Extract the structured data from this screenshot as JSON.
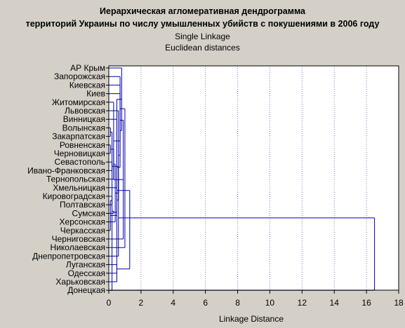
{
  "chart_data": {
    "type": "dendrogram",
    "title": "Иерархическая агломеративная дендрограмма",
    "title_line2": "территорий Украины по числу умышленных убийств с покушениями в 2006 году",
    "subtitle1": "Single Linkage",
    "subtitle2": "Euclidean distances",
    "xlabel": "Linkage Distance",
    "xlim": [
      0,
      18
    ],
    "xticks": [
      0,
      2,
      4,
      6,
      8,
      10,
      12,
      14,
      16,
      18
    ],
    "grid": true,
    "leaves": [
      "АР Крым",
      "Запорожская",
      "Киевская",
      "Киев",
      "Житомирская",
      "Львовская",
      "Винницкая",
      "Волынская",
      "Закарпатская",
      "Ровненская",
      "Черновицкая",
      "Севастополь",
      "Ивано-Франковская",
      "Тернопольская",
      "Хмельницкая",
      "Кировоградская",
      "Полтавская",
      "Сумская",
      "Херсонская",
      "Черкасская",
      "Черниговская",
      "Николаевская",
      "Днепропетровская",
      "Луганская",
      "Одесская",
      "Харьковская",
      "Донецкая"
    ],
    "merges": [
      {
        "a": 8,
        "b": 9,
        "height": 0.1
      },
      {
        "a": 10,
        "b": 11,
        "height": 0.1
      },
      {
        "a": 12,
        "b": 13,
        "height": 0.2
      },
      {
        "a": 27,
        "b": 28,
        "height": 0.2
      },
      {
        "a": 29,
        "b": 14,
        "height": 0.3
      },
      {
        "a": 16,
        "b": 17,
        "height": 0.2
      },
      {
        "a": 31,
        "b": 18,
        "height": 0.3
      },
      {
        "a": 32,
        "b": 19,
        "height": 0.4
      },
      {
        "a": 33,
        "b": 20,
        "height": 0.1
      },
      {
        "a": 34,
        "b": 15,
        "height": 0.5
      },
      {
        "a": 30,
        "b": 35,
        "height": 0.6
      },
      {
        "a": 36,
        "b": 7,
        "height": 0.5
      },
      {
        "a": 37,
        "b": 6,
        "height": 0.6
      },
      {
        "a": 5,
        "b": 38,
        "height": 0.3
      },
      {
        "a": 4,
        "b": 39,
        "height": 0.7
      },
      {
        "a": 3,
        "b": 40,
        "height": 0.7
      },
      {
        "a": 2,
        "b": 41,
        "height": 0.7
      },
      {
        "a": 1,
        "b": 42,
        "height": 0.8
      },
      {
        "a": 43,
        "b": 21,
        "height": 0.9
      },
      {
        "a": 24,
        "b": 25,
        "height": 0.5
      },
      {
        "a": 45,
        "b": 26,
        "height": 0.5
      },
      {
        "a": 46,
        "b": 23,
        "height": 0.6
      },
      {
        "a": 44,
        "b": 22,
        "height": 1.0
      },
      {
        "a": 47,
        "b": 48,
        "height": 1.3
      },
      {
        "a": 49,
        "b": 27,
        "height": 16.5
      }
    ],
    "colors": {
      "line": "#0000aa",
      "background": "#d4d0c8",
      "plot_area": "#ffffff",
      "grid": "#8080c0",
      "axis": "#000000"
    }
  }
}
